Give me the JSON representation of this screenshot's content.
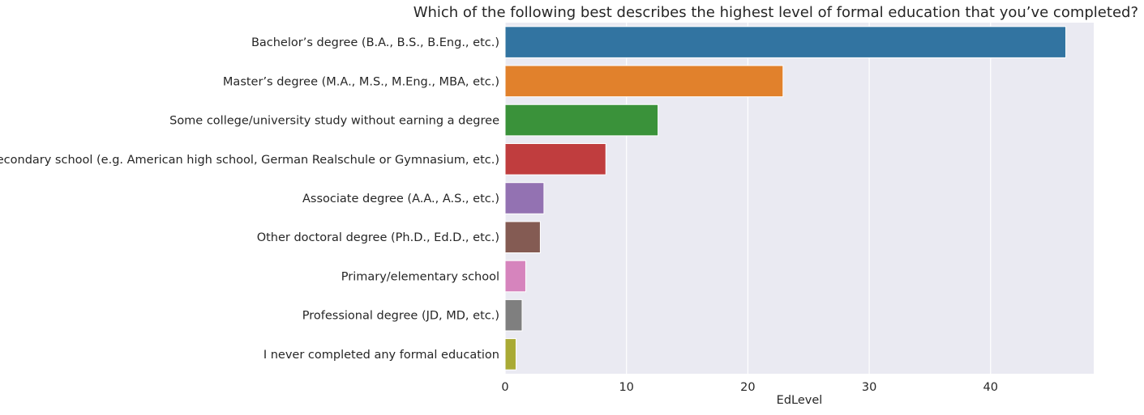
{
  "chart_data": {
    "type": "bar",
    "orientation": "horizontal",
    "title": "Which of the following best describes the highest level of formal education that you’ve completed?",
    "xlabel": "EdLevel",
    "ylabel": "",
    "xlim": [
      0,
      48.5
    ],
    "xticks": [
      0,
      10,
      20,
      30,
      40
    ],
    "grid": true,
    "legend": "none",
    "background": "#eaeaf2",
    "categories": [
      "Bachelor’s degree (B.A., B.S., B.Eng., etc.)",
      "Master’s degree (M.A., M.S., M.Eng., MBA, etc.)",
      "Some college/university study without earning a degree",
      "Secondary school (e.g. American high school, German Realschule or Gymnasium, etc.)",
      "Associate degree (A.A., A.S., etc.)",
      "Other doctoral degree (Ph.D., Ed.D., etc.)",
      "Primary/elementary school",
      "Professional degree (JD, MD, etc.)",
      "I never completed any formal education"
    ],
    "values": [
      46.2,
      22.9,
      12.6,
      8.3,
      3.2,
      2.9,
      1.7,
      1.4,
      0.9
    ],
    "colors": [
      "#3274a1",
      "#e1812c",
      "#3a923a",
      "#c03d3e",
      "#9372b2",
      "#845b53",
      "#d684bd",
      "#7f7f7f",
      "#a9aa35"
    ]
  }
}
